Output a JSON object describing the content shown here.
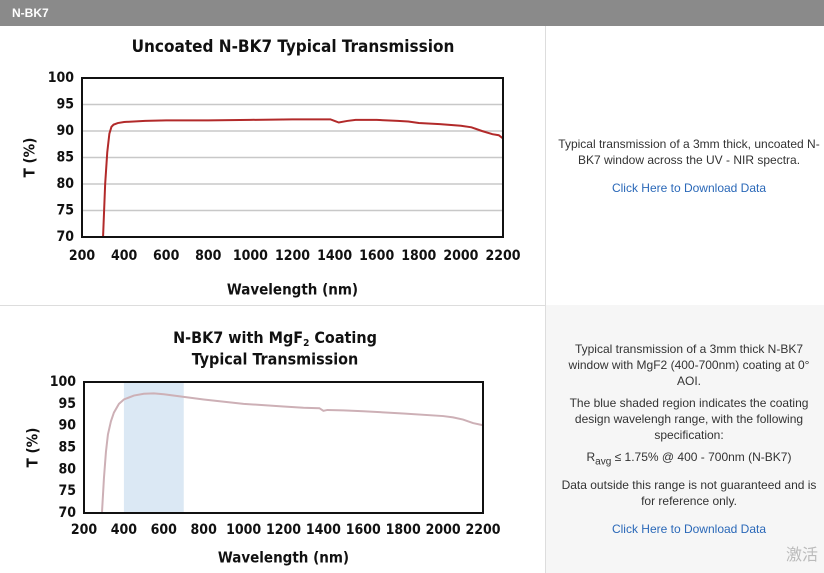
{
  "header": {
    "title": "N-BK7"
  },
  "chart_data": [
    {
      "type": "line",
      "title": "Uncoated N-BK7 Typical Transmission",
      "x_label": "Wavelength (nm)",
      "y_label": "T (%)",
      "x": [
        300,
        310,
        320,
        330,
        340,
        350,
        370,
        400,
        500,
        600,
        800,
        1000,
        1200,
        1300,
        1380,
        1400,
        1420,
        1460,
        1500,
        1600,
        1700,
        1750,
        1800,
        1900,
        2000,
        2050,
        2100,
        2150,
        2180,
        2200
      ],
      "values": [
        70,
        80,
        86,
        89.5,
        90.8,
        91.2,
        91.5,
        91.7,
        91.9,
        92.0,
        92.0,
        92.1,
        92.2,
        92.2,
        92.2,
        91.9,
        91.6,
        91.9,
        92.1,
        92.1,
        91.9,
        91.8,
        91.5,
        91.3,
        91.0,
        90.7,
        90.0,
        89.4,
        89.2,
        88.6
      ],
      "color": "#b22a2a",
      "xlim": [
        200,
        2200
      ],
      "xticks": [
        200,
        400,
        600,
        800,
        1000,
        1200,
        1400,
        1600,
        1800,
        2000,
        2200
      ],
      "ylim": [
        70,
        100
      ],
      "yticks": [
        70,
        75,
        80,
        85,
        90,
        95,
        100
      ],
      "grid": true
    },
    {
      "type": "line",
      "title": {
        "text": "N-BK7 with MgF",
        "subscript": "2",
        "rest": " Coating",
        "line2": "Typical Transmission"
      },
      "x_label": "Wavelength (nm)",
      "y_label": "T (%)",
      "x": [
        290,
        300,
        310,
        320,
        335,
        350,
        375,
        400,
        450,
        500,
        550,
        600,
        700,
        800,
        1000,
        1200,
        1300,
        1380,
        1400,
        1420,
        1500,
        1600,
        1800,
        2000,
        2050,
        2100,
        2150,
        2200
      ],
      "values": [
        70,
        78,
        84,
        88,
        91,
        93,
        95,
        96,
        96.9,
        97.3,
        97.4,
        97.2,
        96.6,
        96.0,
        95.0,
        94.4,
        94.1,
        94.0,
        93.4,
        93.6,
        93.5,
        93.3,
        92.8,
        92.2,
        91.9,
        91.4,
        90.6,
        90.1
      ],
      "color": "#cdb0b6",
      "shaded_range": [
        400,
        700
      ],
      "shaded_color": "#dbe8f4",
      "xlim": [
        200,
        2200
      ],
      "xticks": [
        200,
        400,
        600,
        800,
        1000,
        1200,
        1400,
        1600,
        1800,
        2000,
        2200
      ],
      "ylim": [
        70,
        100
      ],
      "yticks": [
        70,
        75,
        80,
        85,
        90,
        95,
        100
      ],
      "grid": false
    }
  ],
  "panels": [
    {
      "text": "Typical transmission of a 3mm thick, uncoated N-BK7 window across the UV - NIR spectra.",
      "link": "Click Here to Download Data"
    },
    {
      "text": "Typical transmission of a 3mm thick N-BK7 window with MgF2 (400-700nm) coating at 0° AOI.",
      "note": "The blue shaded region indicates the coating design wavelengh range, with the following specification:",
      "spec": {
        "symbol": "R",
        "subscript": "avg",
        "text": " ≤ 1.75% @ 400 - 700nm (N-BK7)"
      },
      "disclaimer": "Data outside this range is not guaranteed and is for reference only.",
      "link": "Click Here to Download Data"
    }
  ],
  "watermark": "激活"
}
